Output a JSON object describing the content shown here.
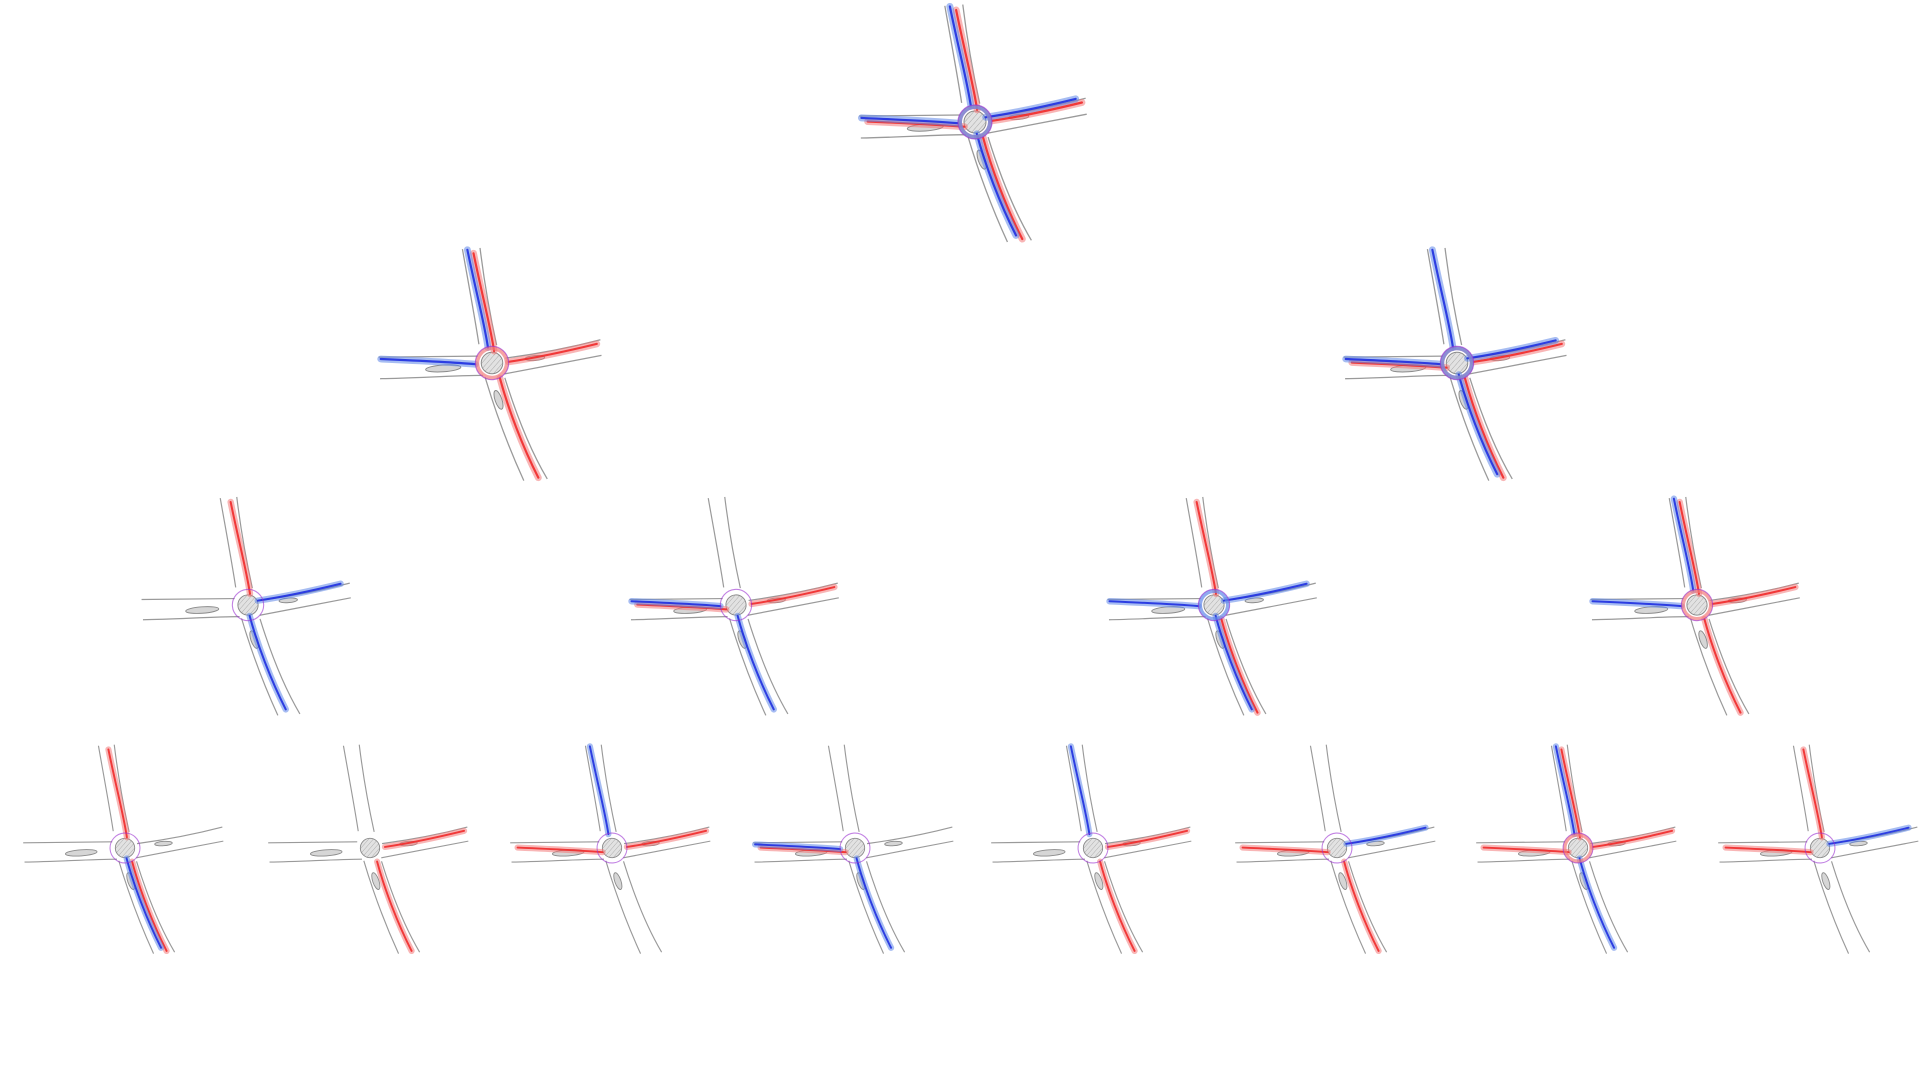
{
  "diagram": {
    "type": "hierarchical-tree",
    "levels": 4,
    "colors": {
      "red": "#f02a2a",
      "red_light": "#f27a7a",
      "blue": "#1f2fe0",
      "blue_light": "#5f86e8",
      "purple": "#9a2fd0",
      "road": "#9a9a9a"
    },
    "nodes": [
      {
        "id": "n0",
        "level": 0,
        "arms": {
          "red": [
            "N",
            "E",
            "S",
            "W"
          ],
          "blue": [
            "N",
            "E",
            "S",
            "W"
          ]
        }
      },
      {
        "id": "n1",
        "level": 1,
        "arms": {
          "red": [
            "N",
            "E",
            "S"
          ],
          "blue": [
            "W",
            "N"
          ]
        }
      },
      {
        "id": "n2",
        "level": 1,
        "arms": {
          "red": [
            "W",
            "S",
            "E"
          ],
          "blue": [
            "N",
            "E",
            "S",
            "W"
          ]
        }
      },
      {
        "id": "n3",
        "level": 2,
        "arms": {
          "red": [
            "N"
          ],
          "blue": [
            "E",
            "S"
          ]
        }
      },
      {
        "id": "n4",
        "level": 2,
        "arms": {
          "red": [
            "W",
            "E"
          ],
          "blue": [
            "W",
            "S"
          ]
        }
      },
      {
        "id": "n5",
        "level": 2,
        "arms": {
          "red": [
            "N",
            "S"
          ],
          "blue": [
            "W",
            "S",
            "E"
          ]
        }
      },
      {
        "id": "n6",
        "level": 2,
        "arms": {
          "red": [
            "N",
            "E",
            "S"
          ],
          "blue": [
            "W",
            "N"
          ]
        }
      },
      {
        "id": "n7",
        "level": 3,
        "arms": {
          "red": [
            "N",
            "S"
          ],
          "blue": [
            "S"
          ]
        }
      },
      {
        "id": "n8",
        "level": 3,
        "arms": {
          "red": [
            "E",
            "S"
          ],
          "blue": []
        }
      },
      {
        "id": "n9",
        "level": 3,
        "arms": {
          "red": [
            "W",
            "E"
          ],
          "blue": [
            "N"
          ]
        }
      },
      {
        "id": "n10",
        "level": 3,
        "arms": {
          "red": [
            "W"
          ],
          "blue": [
            "W",
            "S"
          ]
        }
      },
      {
        "id": "n11",
        "level": 3,
        "arms": {
          "red": [
            "E",
            "S"
          ],
          "blue": [
            "N"
          ]
        }
      },
      {
        "id": "n12",
        "level": 3,
        "arms": {
          "red": [
            "W",
            "S"
          ],
          "blue": [
            "E"
          ]
        }
      },
      {
        "id": "n13",
        "level": 3,
        "arms": {
          "red": [
            "N",
            "W",
            "E"
          ],
          "blue": [
            "N",
            "S"
          ]
        }
      },
      {
        "id": "n14",
        "level": 3,
        "arms": {
          "red": [
            "W",
            "N"
          ],
          "blue": [
            "E"
          ]
        }
      }
    ]
  }
}
